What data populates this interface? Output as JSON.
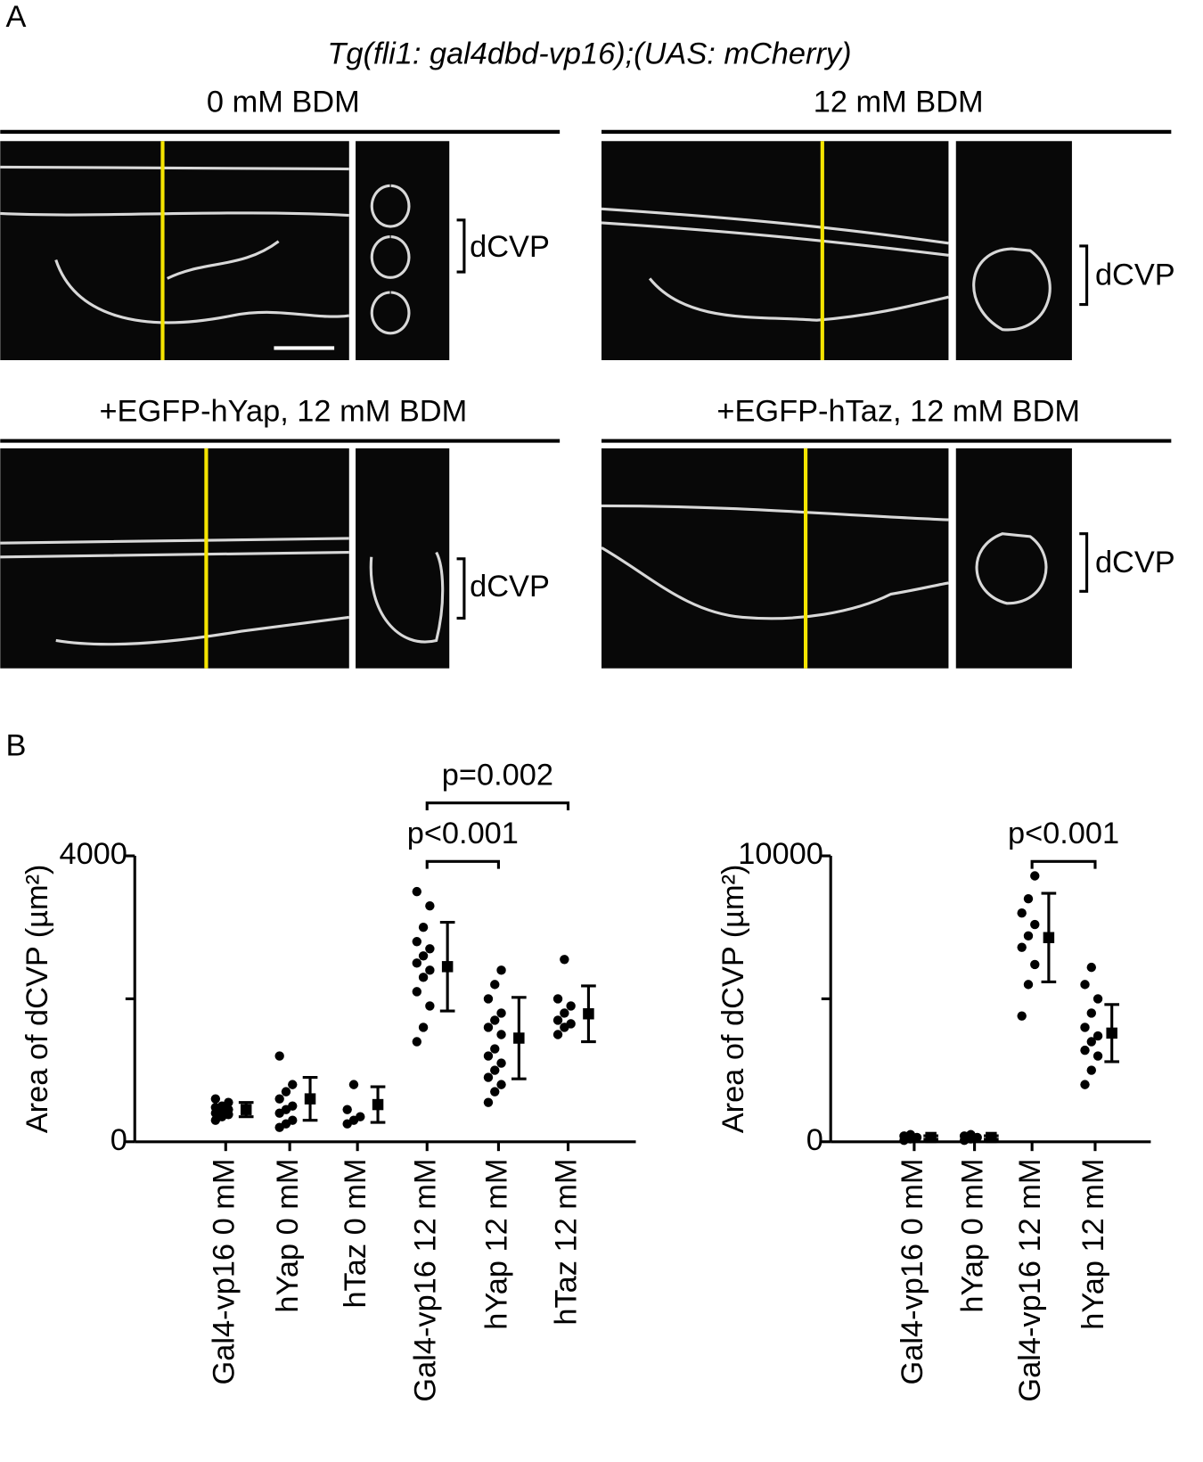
{
  "panel_a": {
    "label": "A",
    "title": "Tg(fli1: gal4dbd-vp16);(UAS: mCherry)",
    "panels": [
      {
        "title": "0 mM BDM",
        "bracket": "dCVP"
      },
      {
        "title": "12 mM BDM",
        "bracket": "dCVP"
      },
      {
        "title": "+EGFP-hYap, 12 mM BDM",
        "bracket": "dCVP"
      },
      {
        "title": "+EGFP-hTaz, 12 mM BDM",
        "bracket": "dCVP"
      }
    ]
  },
  "panel_b_label": "B",
  "chart_data": [
    {
      "type": "dot",
      "y_label": "Area of dCVP (µm²)",
      "categories": [
        "Gal4-vp16 0 mM",
        "hYap 0 mM",
        "hTaz 0 mM",
        "Gal4-vp16 12 mM",
        "hYap 12 mM",
        "hTaz 12 mM"
      ],
      "ylim": [
        0,
        4000
      ],
      "yticks": [
        0,
        4000
      ],
      "minor_yticks": [
        2000
      ],
      "color": "#000000",
      "groups": [
        {
          "points": [
            300,
            350,
            380,
            400,
            420,
            450,
            480,
            500,
            550,
            600
          ],
          "mean": 450,
          "sd": 100
        },
        {
          "points": [
            200,
            250,
            300,
            400,
            450,
            500,
            600,
            700,
            800,
            1200
          ],
          "mean": 600,
          "sd": 300
        },
        {
          "points": [
            250,
            300,
            350,
            450,
            800
          ],
          "mean": 520,
          "sd": 250
        },
        {
          "points": [
            1400,
            1600,
            1900,
            2100,
            2300,
            2400,
            2500,
            2600,
            2700,
            2800,
            3000,
            3300,
            3500
          ],
          "mean": 2450,
          "sd": 620
        },
        {
          "points": [
            550,
            700,
            800,
            900,
            1000,
            1100,
            1200,
            1300,
            1500,
            1600,
            1700,
            1800,
            2000,
            2200,
            2400
          ],
          "mean": 1450,
          "sd": 570
        },
        {
          "points": [
            1500,
            1600,
            1650,
            1700,
            1800,
            1900,
            2000,
            2550
          ],
          "mean": 1790,
          "sd": 390
        }
      ],
      "annotations": [
        {
          "text": "p<0.001",
          "from": 3,
          "to": 4
        },
        {
          "text": "p=0.002",
          "from": 3,
          "to": 5
        }
      ]
    },
    {
      "type": "dot",
      "y_label": "Area of dCVP (µm²)",
      "categories": [
        "Gal4-vp16 0 mM",
        "hYap 0 mM",
        "Gal4-vp16 12 mM",
        "hYap 12 mM"
      ],
      "ylim": [
        0,
        10000
      ],
      "yticks": [
        0,
        10000
      ],
      "minor_yticks": [
        5000
      ],
      "color": "#000000",
      "groups": [
        {
          "points": [
            50,
            100,
            150,
            200,
            250
          ],
          "mean": 150,
          "sd": 60
        },
        {
          "points": [
            50,
            100,
            150,
            200,
            250
          ],
          "mean": 150,
          "sd": 60
        },
        {
          "points": [
            4400,
            5500,
            6200,
            6800,
            7200,
            7600,
            8000,
            8500,
            9300
          ],
          "mean": 7140,
          "sd": 1550
        },
        {
          "points": [
            2000,
            2500,
            3000,
            3200,
            3500,
            3700,
            4000,
            4500,
            5000,
            5500,
            6100
          ],
          "mean": 3800,
          "sd": 1000
        }
      ],
      "annotations": [
        {
          "text": "p<0.001",
          "from": 2,
          "to": 3
        }
      ]
    }
  ]
}
